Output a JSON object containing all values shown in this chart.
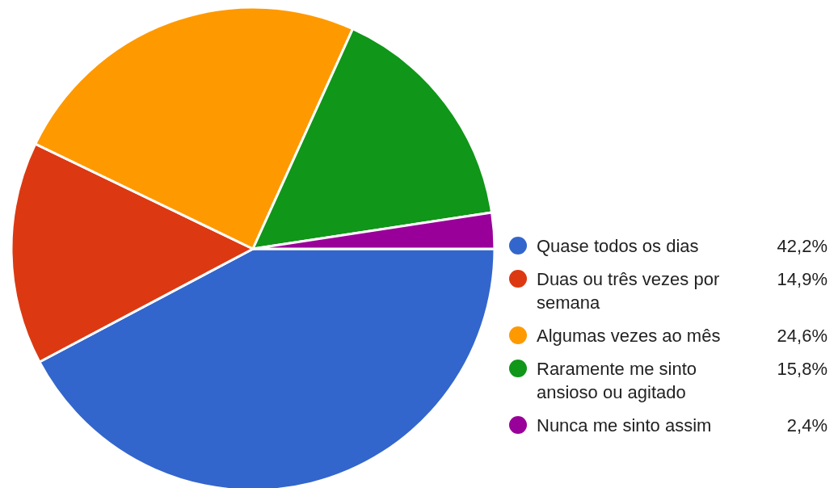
{
  "chart_data": {
    "type": "pie",
    "categories": [
      "Quase todos os dias",
      "Duas ou três vezes por semana",
      "Algumas vezes ao mês",
      "Raramente me sinto ansioso ou agitado",
      "Nunca me sinto assim"
    ],
    "values": [
      42.2,
      14.9,
      24.6,
      15.8,
      2.4
    ],
    "value_labels": [
      "42,2%",
      "14,9%",
      "24,6%",
      "15,8%",
      "2,4%"
    ],
    "colors": [
      "#3366cc",
      "#dc3912",
      "#ff9900",
      "#109618",
      "#990099"
    ],
    "legend": "right"
  }
}
